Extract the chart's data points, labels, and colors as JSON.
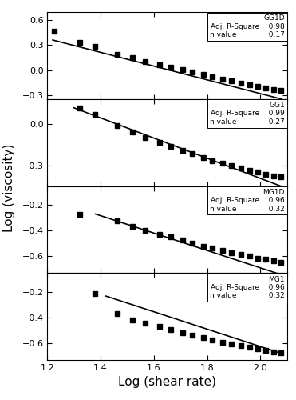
{
  "panels": [
    {
      "label": "GG1D",
      "adj_r_square": "0.98",
      "n_value": "0.17",
      "ylim": [
        -0.35,
        0.7
      ],
      "yticks": [
        -0.3,
        0.0,
        0.3,
        0.6
      ],
      "scatter_x": [
        1.225,
        1.322,
        1.38,
        1.462,
        1.519,
        1.568,
        1.62,
        1.663,
        1.707,
        1.745,
        1.785,
        1.82,
        1.857,
        1.892,
        1.926,
        1.959,
        1.99,
        2.02,
        2.05,
        2.076
      ],
      "scatter_y": [
        0.47,
        0.33,
        0.285,
        0.19,
        0.145,
        0.105,
        0.065,
        0.035,
        0.005,
        -0.02,
        -0.055,
        -0.08,
        -0.11,
        -0.135,
        -0.155,
        -0.18,
        -0.2,
        -0.215,
        -0.235,
        -0.245
      ],
      "line_x": [
        1.22,
        2.08
      ],
      "line_slope": -0.83,
      "line_intercept": 1.375
    },
    {
      "label": "GG1",
      "adj_r_square": "0.99",
      "n_value": "0.27",
      "ylim": [
        -0.45,
        0.18
      ],
      "yticks": [
        -0.3,
        0.0
      ],
      "scatter_x": [
        1.322,
        1.38,
        1.462,
        1.519,
        1.568,
        1.62,
        1.663,
        1.707,
        1.745,
        1.785,
        1.82,
        1.857,
        1.892,
        1.926,
        1.959,
        1.99,
        2.02,
        2.05,
        2.076
      ],
      "scatter_y": [
        0.115,
        0.07,
        -0.015,
        -0.06,
        -0.1,
        -0.135,
        -0.165,
        -0.19,
        -0.215,
        -0.245,
        -0.265,
        -0.285,
        -0.305,
        -0.32,
        -0.335,
        -0.35,
        -0.365,
        -0.375,
        -0.385
      ],
      "line_x": [
        1.3,
        2.08
      ],
      "line_slope": -0.73,
      "line_intercept": 1.065
    },
    {
      "label": "MG1D",
      "adj_r_square": "0.96",
      "n_value": "0.32",
      "ylim": [
        -0.73,
        -0.05
      ],
      "yticks": [
        -0.6,
        -0.4,
        -0.2
      ],
      "scatter_x": [
        1.322,
        1.462,
        1.519,
        1.568,
        1.62,
        1.663,
        1.707,
        1.745,
        1.785,
        1.82,
        1.857,
        1.892,
        1.926,
        1.959,
        1.99,
        2.02,
        2.05,
        2.076
      ],
      "scatter_y": [
        -0.27,
        -0.32,
        -0.365,
        -0.395,
        -0.43,
        -0.45,
        -0.475,
        -0.5,
        -0.52,
        -0.535,
        -0.555,
        -0.57,
        -0.585,
        -0.6,
        -0.615,
        -0.625,
        -0.635,
        -0.645
      ],
      "line_x": [
        1.38,
        2.08
      ],
      "line_slope": -0.68,
      "line_intercept": 0.67
    },
    {
      "label": "MG1",
      "adj_r_square": "0.96",
      "n_value": "0.32",
      "ylim": [
        -0.73,
        -0.05
      ],
      "yticks": [
        -0.6,
        -0.4,
        -0.2
      ],
      "scatter_x": [
        1.38,
        1.462,
        1.519,
        1.568,
        1.62,
        1.663,
        1.707,
        1.745,
        1.785,
        1.82,
        1.857,
        1.892,
        1.926,
        1.959,
        1.99,
        2.02,
        2.05,
        2.076
      ],
      "scatter_y": [
        -0.21,
        -0.37,
        -0.415,
        -0.445,
        -0.47,
        -0.49,
        -0.515,
        -0.535,
        -0.555,
        -0.575,
        -0.59,
        -0.605,
        -0.62,
        -0.63,
        -0.645,
        -0.655,
        -0.665,
        -0.675
      ],
      "line_x": [
        1.42,
        2.08
      ],
      "line_slope": -0.68,
      "line_intercept": 0.735
    }
  ],
  "xlim": [
    1.2,
    2.1
  ],
  "xticks": [
    1.2,
    1.4,
    1.6,
    1.8,
    2.0
  ],
  "xlabel": "Log (shear rate)",
  "ylabel": "Log (viscosity)",
  "marker": "s",
  "marker_size": 5,
  "line_color": "black",
  "marker_color": "black",
  "marker_facecolor": "black"
}
